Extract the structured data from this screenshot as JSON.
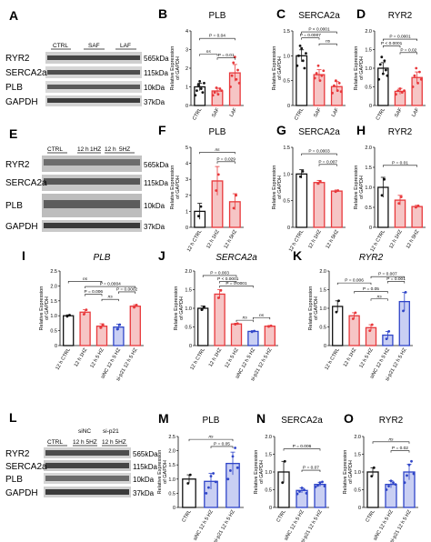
{
  "figure": {
    "row1": {
      "A": {
        "letter": "A",
        "lanes": [
          "CTRL",
          "SAF",
          "LAF"
        ],
        "proteins": [
          "RYR2",
          "SERCA2a",
          "PLB",
          "GAPDH"
        ],
        "sizes": [
          "565kDa",
          "115kDa",
          "10kDa",
          "37kDa"
        ]
      }
    },
    "row2": {
      "E": {
        "letter": "E",
        "lanes": [
          "CTRL",
          "12 h",
          "1HZ",
          "12 h",
          "5HZ"
        ],
        "proteins": [
          "RYR2",
          "SERCA2a",
          "PLB",
          "GAPDH"
        ],
        "sizes": [
          "565kDa",
          "115kDa",
          "10kDa",
          "37kDa"
        ]
      }
    },
    "row4": {
      "L": {
        "letter": "L",
        "lanes": [
          "siNC",
          "si-p21",
          "CTRL",
          "12 h 5HZ",
          "12 h 5HZ"
        ],
        "proteins": [
          "RYR2",
          "SERCA2a",
          "PLB",
          "GAPDH"
        ],
        "sizes": [
          "565kDa",
          "115kDa",
          "10kDa",
          "37kDa"
        ]
      }
    },
    "ylabel": [
      "Relative Expression",
      "of GAPDH"
    ]
  },
  "colors": {
    "black": "#111111",
    "red": "#e8383b",
    "red_fill": "#f6c5c5",
    "blue": "#2f45c8",
    "blue_fill": "#c9cff3",
    "blot_bg": "#d6d6d6",
    "band": "#1c1c1c"
  },
  "chart_data": [
    {
      "panel": "B",
      "type": "bar",
      "title": "PLB",
      "categories": [
        "CTRL",
        "SAF",
        "LAF"
      ],
      "series": [
        {
          "values": [
            1.0,
            0.78,
            1.75
          ],
          "errors": [
            0.2,
            0.15,
            0.45
          ]
        }
      ],
      "colors": [
        "black",
        "red",
        "red"
      ],
      "ylim": [
        0,
        4
      ],
      "yticks": [
        0,
        1,
        2,
        3,
        4
      ],
      "points": [
        [
          0.55,
          0.8,
          1.1,
          1.3,
          0.9,
          0.7,
          1.2
        ],
        [
          0.55,
          0.7,
          0.95,
          0.6,
          0.9,
          0.8
        ],
        [
          1.0,
          1.6,
          2.3,
          2.6,
          1.4,
          1.9,
          1.2
        ]
      ],
      "brackets": [
        {
          "from": 0,
          "to": 2,
          "label": "P = 0.04",
          "y": 3.6
        },
        {
          "from": 0,
          "to": 1,
          "label": "ns",
          "y": 2.75
        },
        {
          "from": 1,
          "to": 2,
          "label": "P = 0.01",
          "y": 2.55
        }
      ]
    },
    {
      "panel": "C",
      "type": "bar",
      "title": "SERCA2a",
      "categories": [
        "CTRL",
        "SAF",
        "LAF"
      ],
      "series": [
        {
          "values": [
            1.0,
            0.62,
            0.38
          ],
          "errors": [
            0.12,
            0.1,
            0.1
          ]
        }
      ],
      "colors": [
        "black",
        "red",
        "red"
      ],
      "ylim": [
        0,
        1.5
      ],
      "yticks": [
        0,
        0.5,
        1.0,
        1.5
      ],
      "points": [
        [
          0.8,
          1.0,
          1.2,
          1.15,
          0.9,
          0.75,
          1.05
        ],
        [
          0.55,
          0.65,
          0.8,
          0.5,
          0.6,
          0.7
        ],
        [
          0.25,
          0.4,
          0.5,
          0.3,
          0.45,
          0.28
        ]
      ],
      "brackets": [
        {
          "from": 0,
          "to": 2,
          "label": "P < 0.0001",
          "y": 1.48
        },
        {
          "from": 0,
          "to": 1,
          "label": "P = 0.0007",
          "y": 1.36
        },
        {
          "from": 1,
          "to": 2,
          "label": "ns",
          "y": 1.24
        }
      ]
    },
    {
      "panel": "D",
      "type": "bar",
      "title": "RYR2",
      "categories": [
        "CTRL",
        "SAF",
        "LAF"
      ],
      "series": [
        {
          "values": [
            1.0,
            0.38,
            0.75
          ],
          "errors": [
            0.15,
            0.08,
            0.15
          ]
        }
      ],
      "colors": [
        "black",
        "red",
        "red"
      ],
      "ylim": [
        0,
        2
      ],
      "yticks": [
        0,
        0.5,
        1.0,
        1.5,
        2.0
      ],
      "points": [
        [
          0.7,
          1.1,
          1.3,
          0.85,
          1.2,
          0.95,
          0.8
        ],
        [
          0.3,
          0.4,
          0.45,
          0.35,
          0.4
        ],
        [
          0.5,
          0.8,
          1.0,
          0.6,
          0.9,
          0.7
        ]
      ],
      "brackets": [
        {
          "from": 0,
          "to": 2,
          "label": "P = 0.0001",
          "y": 1.78
        },
        {
          "from": 0,
          "to": 1,
          "label": "P < 0.0001",
          "y": 1.6
        },
        {
          "from": 1,
          "to": 2,
          "label": "P = 0.02",
          "y": 1.42
        }
      ]
    },
    {
      "panel": "F",
      "type": "bar",
      "title": "PLB",
      "categories": [
        "12 h CTRL",
        "12 h 1HZ",
        "12 h 5HZ"
      ],
      "series": [
        {
          "values": [
            1.0,
            2.9,
            1.6
          ],
          "errors": [
            0.5,
            0.9,
            0.5
          ]
        }
      ],
      "colors": [
        "black",
        "red",
        "red"
      ],
      "ylim": [
        0,
        5
      ],
      "yticks": [
        0,
        1,
        2,
        3,
        4,
        5
      ],
      "points": [
        [
          0.7,
          1.3
        ],
        [
          2.3,
          3.3
        ],
        [
          1.2,
          2.0
        ]
      ],
      "brackets": [
        {
          "from": 0,
          "to": 2,
          "label": "ns",
          "y": 4.7
        },
        {
          "from": 1,
          "to": 2,
          "label": "P = 0.029",
          "y": 4.1
        }
      ]
    },
    {
      "panel": "G",
      "type": "bar",
      "title": "SERCA2a",
      "categories": [
        "12 h CTRL",
        "12 h 1HZ",
        "12 h 5HZ"
      ],
      "series": [
        {
          "values": [
            1.0,
            0.84,
            0.68
          ],
          "errors": [
            0.08,
            0.04,
            0.02
          ]
        }
      ],
      "colors": [
        "black",
        "red",
        "red"
      ],
      "ylim": [
        0,
        1.5
      ],
      "yticks": [
        0,
        0.5,
        1.0,
        1.5
      ],
      "points": [
        [
          0.95,
          1.05
        ],
        [
          0.82,
          0.86
        ],
        [
          0.67,
          0.69
        ]
      ],
      "brackets": [
        {
          "from": 0,
          "to": 2,
          "label": "P = 0.0003",
          "y": 1.38
        },
        {
          "from": 1,
          "to": 2,
          "label": "P = 0.007",
          "y": 1.18
        }
      ]
    },
    {
      "panel": "H",
      "type": "bar",
      "title": "RYR2",
      "categories": [
        "12 h CTRL",
        "12 h 1HZ",
        "12 h 5HZ"
      ],
      "series": [
        {
          "values": [
            1.0,
            0.68,
            0.52
          ],
          "errors": [
            0.25,
            0.12,
            0.03
          ]
        }
      ],
      "colors": [
        "black",
        "red",
        "red"
      ],
      "ylim": [
        0,
        2
      ],
      "yticks": [
        0,
        0.5,
        1.0,
        1.5,
        2.0
      ],
      "points": [
        [
          0.8,
          1.2
        ],
        [
          0.6,
          0.76
        ],
        [
          0.5,
          0.54
        ]
      ],
      "brackets": [
        {
          "from": 0,
          "to": 2,
          "label": "P = 0.01",
          "y": 1.55
        }
      ]
    },
    {
      "panel": "I",
      "type": "bar",
      "title": "PLB",
      "categories": [
        "12 h CTRL",
        "12 h 1HZ",
        "12 h 5 HZ",
        "siNC 12 h 5 HZ",
        "si-p21 12 h 5 HZ"
      ],
      "series": [
        {
          "values": [
            1.0,
            1.12,
            0.65,
            0.62,
            1.32
          ],
          "errors": [
            0.03,
            0.08,
            0.08,
            0.1,
            0.05
          ]
        }
      ],
      "colors": [
        "black",
        "red",
        "red",
        "blue",
        "red"
      ],
      "ylim": [
        0,
        2.5
      ],
      "yticks": [
        0,
        0.5,
        1.0,
        1.5,
        2.0,
        2.5
      ],
      "points": [
        [
          0.98,
          1.02
        ],
        [
          1.05,
          1.2
        ],
        [
          0.6,
          0.7
        ],
        [
          0.55,
          0.7
        ],
        [
          1.28,
          1.36
        ]
      ],
      "brackets": [
        {
          "from": 0,
          "to": 2,
          "label": "ns",
          "y": 2.15
        },
        {
          "from": 1,
          "to": 4,
          "label": "P = 0.0004",
          "y": 1.98
        },
        {
          "from": 1,
          "to": 2,
          "label": "P = 0.006",
          "y": 1.72
        },
        {
          "from": 3,
          "to": 4,
          "label": "P = 0.0002",
          "y": 1.8
        },
        {
          "from": 2,
          "to": 3,
          "label": "ns",
          "y": 1.55
        }
      ]
    },
    {
      "panel": "J",
      "type": "bar",
      "title": "SERCA2a",
      "categories": [
        "12 h CTRL",
        "12 h 1HZ",
        "12 h 5 HZ",
        "siNC 12 h 5 HZ",
        "si-p21 12 h 5 HZ"
      ],
      "series": [
        {
          "values": [
            1.0,
            1.38,
            0.58,
            0.38,
            0.52
          ],
          "errors": [
            0.06,
            0.12,
            0.02,
            0.02,
            0.02
          ]
        }
      ],
      "colors": [
        "black",
        "red",
        "red",
        "blue",
        "red"
      ],
      "ylim": [
        0,
        2.0
      ],
      "yticks": [
        0,
        0.5,
        1.0,
        1.5,
        2.0
      ],
      "points": [
        [
          0.96,
          1.04
        ],
        [
          1.28,
          1.48
        ],
        [
          0.57,
          0.59
        ],
        [
          0.37,
          0.39
        ],
        [
          0.51,
          0.53
        ]
      ],
      "brackets": [
        {
          "from": 0,
          "to": 2,
          "label": "P = 0.003",
          "y": 1.88
        },
        {
          "from": 1,
          "to": 2,
          "label": "P < 0.0001",
          "y": 1.72
        },
        {
          "from": 1,
          "to": 3,
          "label": "P = 0.0001",
          "y": 1.6
        },
        {
          "from": 3,
          "to": 4,
          "label": "ns",
          "y": 0.75
        },
        {
          "from": 2,
          "to": 3,
          "label": "ns",
          "y": 0.68
        }
      ]
    },
    {
      "panel": "K",
      "type": "bar",
      "title": "RYR2",
      "categories": [
        "12 h CTRL",
        "12 h 1HZ",
        "12 h 5 HZ",
        "siNC 12 h 5 HZ",
        "si-p21 12 h 5 HZ"
      ],
      "series": [
        {
          "values": [
            1.05,
            0.8,
            0.48,
            0.28,
            1.18
          ],
          "errors": [
            0.15,
            0.08,
            0.08,
            0.1,
            0.25
          ]
        }
      ],
      "colors": [
        "black",
        "red",
        "red",
        "blue",
        "blue"
      ],
      "ylim": [
        0,
        2.0
      ],
      "yticks": [
        0,
        0.5,
        1.0,
        1.5,
        2.0
      ],
      "points": [
        [
          0.9,
          1.2
        ],
        [
          0.72,
          0.88
        ],
        [
          0.4,
          0.56
        ],
        [
          0.18,
          0.38
        ],
        [
          0.93,
          1.43
        ]
      ],
      "brackets": [
        {
          "from": 0,
          "to": 2,
          "label": "P = 0.006",
          "y": 1.68
        },
        {
          "from": 1,
          "to": 3,
          "label": "P = 0.05",
          "y": 1.45
        },
        {
          "from": 2,
          "to": 3,
          "label": "ns",
          "y": 1.25
        },
        {
          "from": 2,
          "to": 4,
          "label": "P = 0.007",
          "y": 1.85
        },
        {
          "from": 3,
          "to": 4,
          "label": "P = 0.001",
          "y": 1.72
        }
      ]
    },
    {
      "panel": "M",
      "type": "bar",
      "title": "PLB",
      "categories": [
        "CTRL",
        "siNC 12 h 5 HZ",
        "si-p21 12 h 5 HZ"
      ],
      "series": [
        {
          "values": [
            1.0,
            0.92,
            1.55
          ],
          "errors": [
            0.15,
            0.28,
            0.4
          ]
        }
      ],
      "colors": [
        "black",
        "blue",
        "blue"
      ],
      "ylim": [
        0,
        2.5
      ],
      "yticks": [
        0,
        0.5,
        1.0,
        1.5,
        2.0,
        2.5
      ],
      "points": [
        [
          0.85,
          1.15
        ],
        [
          0.5,
          0.7,
          1.1,
          1.2,
          0.9
        ],
        [
          1.0,
          1.3,
          1.8,
          2.1,
          1.4
        ]
      ],
      "brackets": [
        {
          "from": 0,
          "to": 2,
          "label": "ns",
          "y": 2.4
        },
        {
          "from": 1,
          "to": 2,
          "label": "P = 0.05",
          "y": 2.15
        }
      ]
    },
    {
      "panel": "N",
      "type": "bar",
      "title": "SERCA2a",
      "categories": [
        "CTRL",
        "siNC 12 h 5 HZ",
        "si-p21 12 h 5 HZ"
      ],
      "series": [
        {
          "values": [
            1.0,
            0.48,
            0.65
          ],
          "errors": [
            0.3,
            0.07,
            0.06
          ]
        }
      ],
      "colors": [
        "black",
        "blue",
        "blue"
      ],
      "ylim": [
        0,
        2.0
      ],
      "yticks": [
        0,
        0.5,
        1.0,
        1.5,
        2.0
      ],
      "points": [
        [
          0.7,
          1.3
        ],
        [
          0.38,
          0.45,
          0.55,
          0.5,
          0.4
        ],
        [
          0.58,
          0.62,
          0.7,
          0.72,
          0.6
        ]
      ],
      "brackets": [
        {
          "from": 0,
          "to": 2,
          "label": "P = 0.006",
          "y": 1.65
        },
        {
          "from": 1,
          "to": 2,
          "label": "P = 0.07",
          "y": 1.05
        }
      ]
    },
    {
      "panel": "O",
      "type": "bar",
      "title": "RYR2",
      "categories": [
        "CTRL",
        "siNC 12 h 5 HZ",
        "si-p21 12 h 5 HZ"
      ],
      "series": [
        {
          "values": [
            1.0,
            0.65,
            1.0
          ],
          "errors": [
            0.12,
            0.1,
            0.22
          ]
        }
      ],
      "colors": [
        "black",
        "blue",
        "blue"
      ],
      "ylim": [
        0,
        2.0
      ],
      "yticks": [
        0,
        0.5,
        1.0,
        1.5,
        2.0
      ],
      "points": [
        [
          0.88,
          1.12
        ],
        [
          0.5,
          0.6,
          0.75,
          0.7,
          0.65
        ],
        [
          0.7,
          0.9,
          1.2,
          1.3,
          0.95
        ]
      ],
      "brackets": [
        {
          "from": 0,
          "to": 2,
          "label": "ns",
          "y": 1.85
        },
        {
          "from": 1,
          "to": 2,
          "label": "P = 0.02",
          "y": 1.6
        }
      ]
    }
  ]
}
